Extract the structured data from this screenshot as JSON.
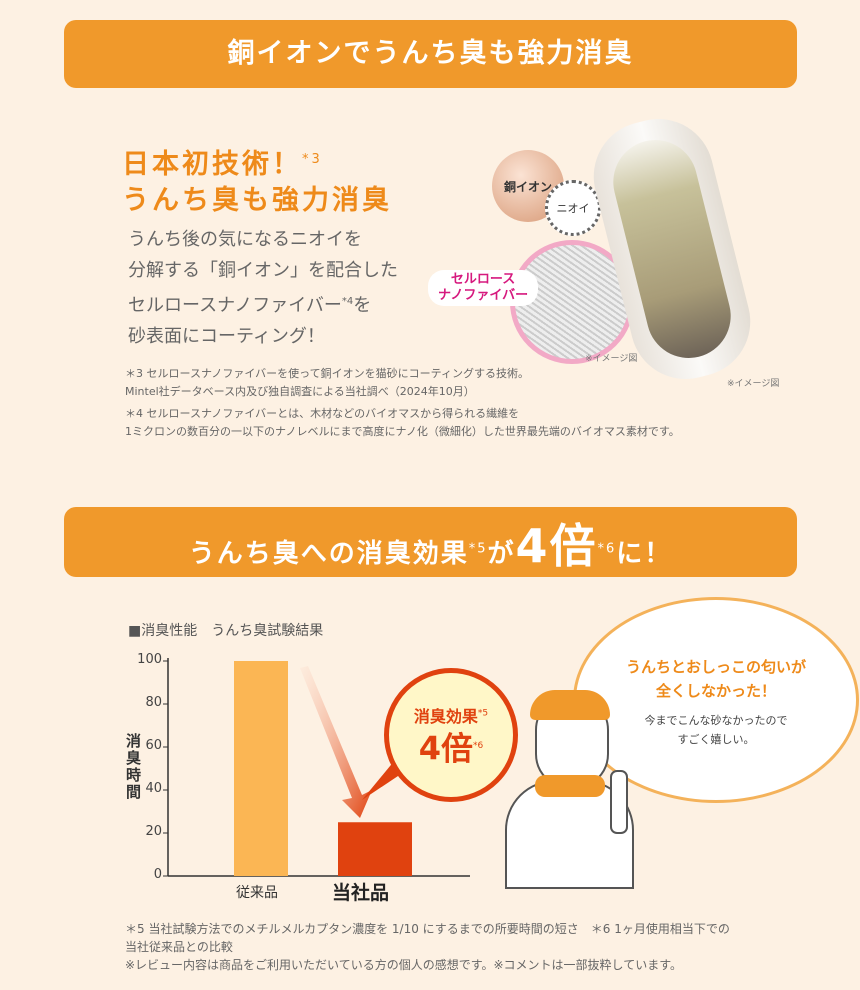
{
  "section1": {
    "banner": "銅イオンでうんち臭も強力消臭",
    "headline1": "日本初技術！",
    "headline1_note": "*3",
    "headline2": "うんち臭も強力消臭",
    "body": [
      "うんち後の気になるニオイを",
      "分解する「銅イオン」を配合した",
      "セルロースナノファイバー",
      "砂表面にコーティング！"
    ],
    "body_note": "*4",
    "body_suffix": "を",
    "labels": {
      "copper": "銅イオン",
      "odor": "ニオイ",
      "fiber1": "セルロース",
      "fiber2": "ナノファイバー",
      "image1": "※イメージ図",
      "image2": "※イメージ図"
    },
    "notes": [
      "＊3 セルロースナノファイバーを使って銅イオンを猫砂にコーティングする技術。",
      "Mintel社データベース内及び独自調査による当社調べ（2024年10月）",
      "＊4 セルロースナノファイバーとは、木材などのバイオマスから得られる繊維を",
      "1ミクロンの数百分の一以下のナノレベルにまで高度にナノ化（微細化）した世界最先端のバイオマス素材です。"
    ]
  },
  "section2": {
    "banner_a": "うんち臭への消臭効果",
    "banner_note1": "*5",
    "banner_b": "が",
    "banner_big": "4倍",
    "banner_note2": "*6",
    "banner_c": "に！",
    "badge_line1": "消臭効果",
    "badge_note1": "*5",
    "badge_big": "4倍",
    "badge_note2": "*6",
    "bubble_title": [
      "うんちとおしっこの匂いが",
      "全くしなかった！"
    ],
    "bubble_body": [
      "今までこんな砂なかったので",
      "すごく嬉しい。"
    ],
    "notes": [
      "＊5 当社試験方法でのメチルメルカプタン濃度を 1/10 にするまでの所要時間の短さ　＊6 1ヶ月使用相当下での",
      "当社従来品との比較",
      "※レビュー内容は商品をご利用いただいている方の個人の感想です。※コメントは一部抜粋しています。"
    ]
  },
  "chart_data": {
    "type": "bar",
    "title": "■消臭性能　うんち臭試験結果",
    "ylabel": "消臭時間",
    "categories": [
      "従来品",
      "当社品"
    ],
    "values": [
      100,
      25
    ],
    "ylim": [
      0,
      100
    ],
    "yticks": [
      "0",
      "20",
      "40",
      "60",
      "80",
      "100"
    ],
    "colors": [
      "#fbb654",
      "#e0420f"
    ],
    "grid": false
  }
}
